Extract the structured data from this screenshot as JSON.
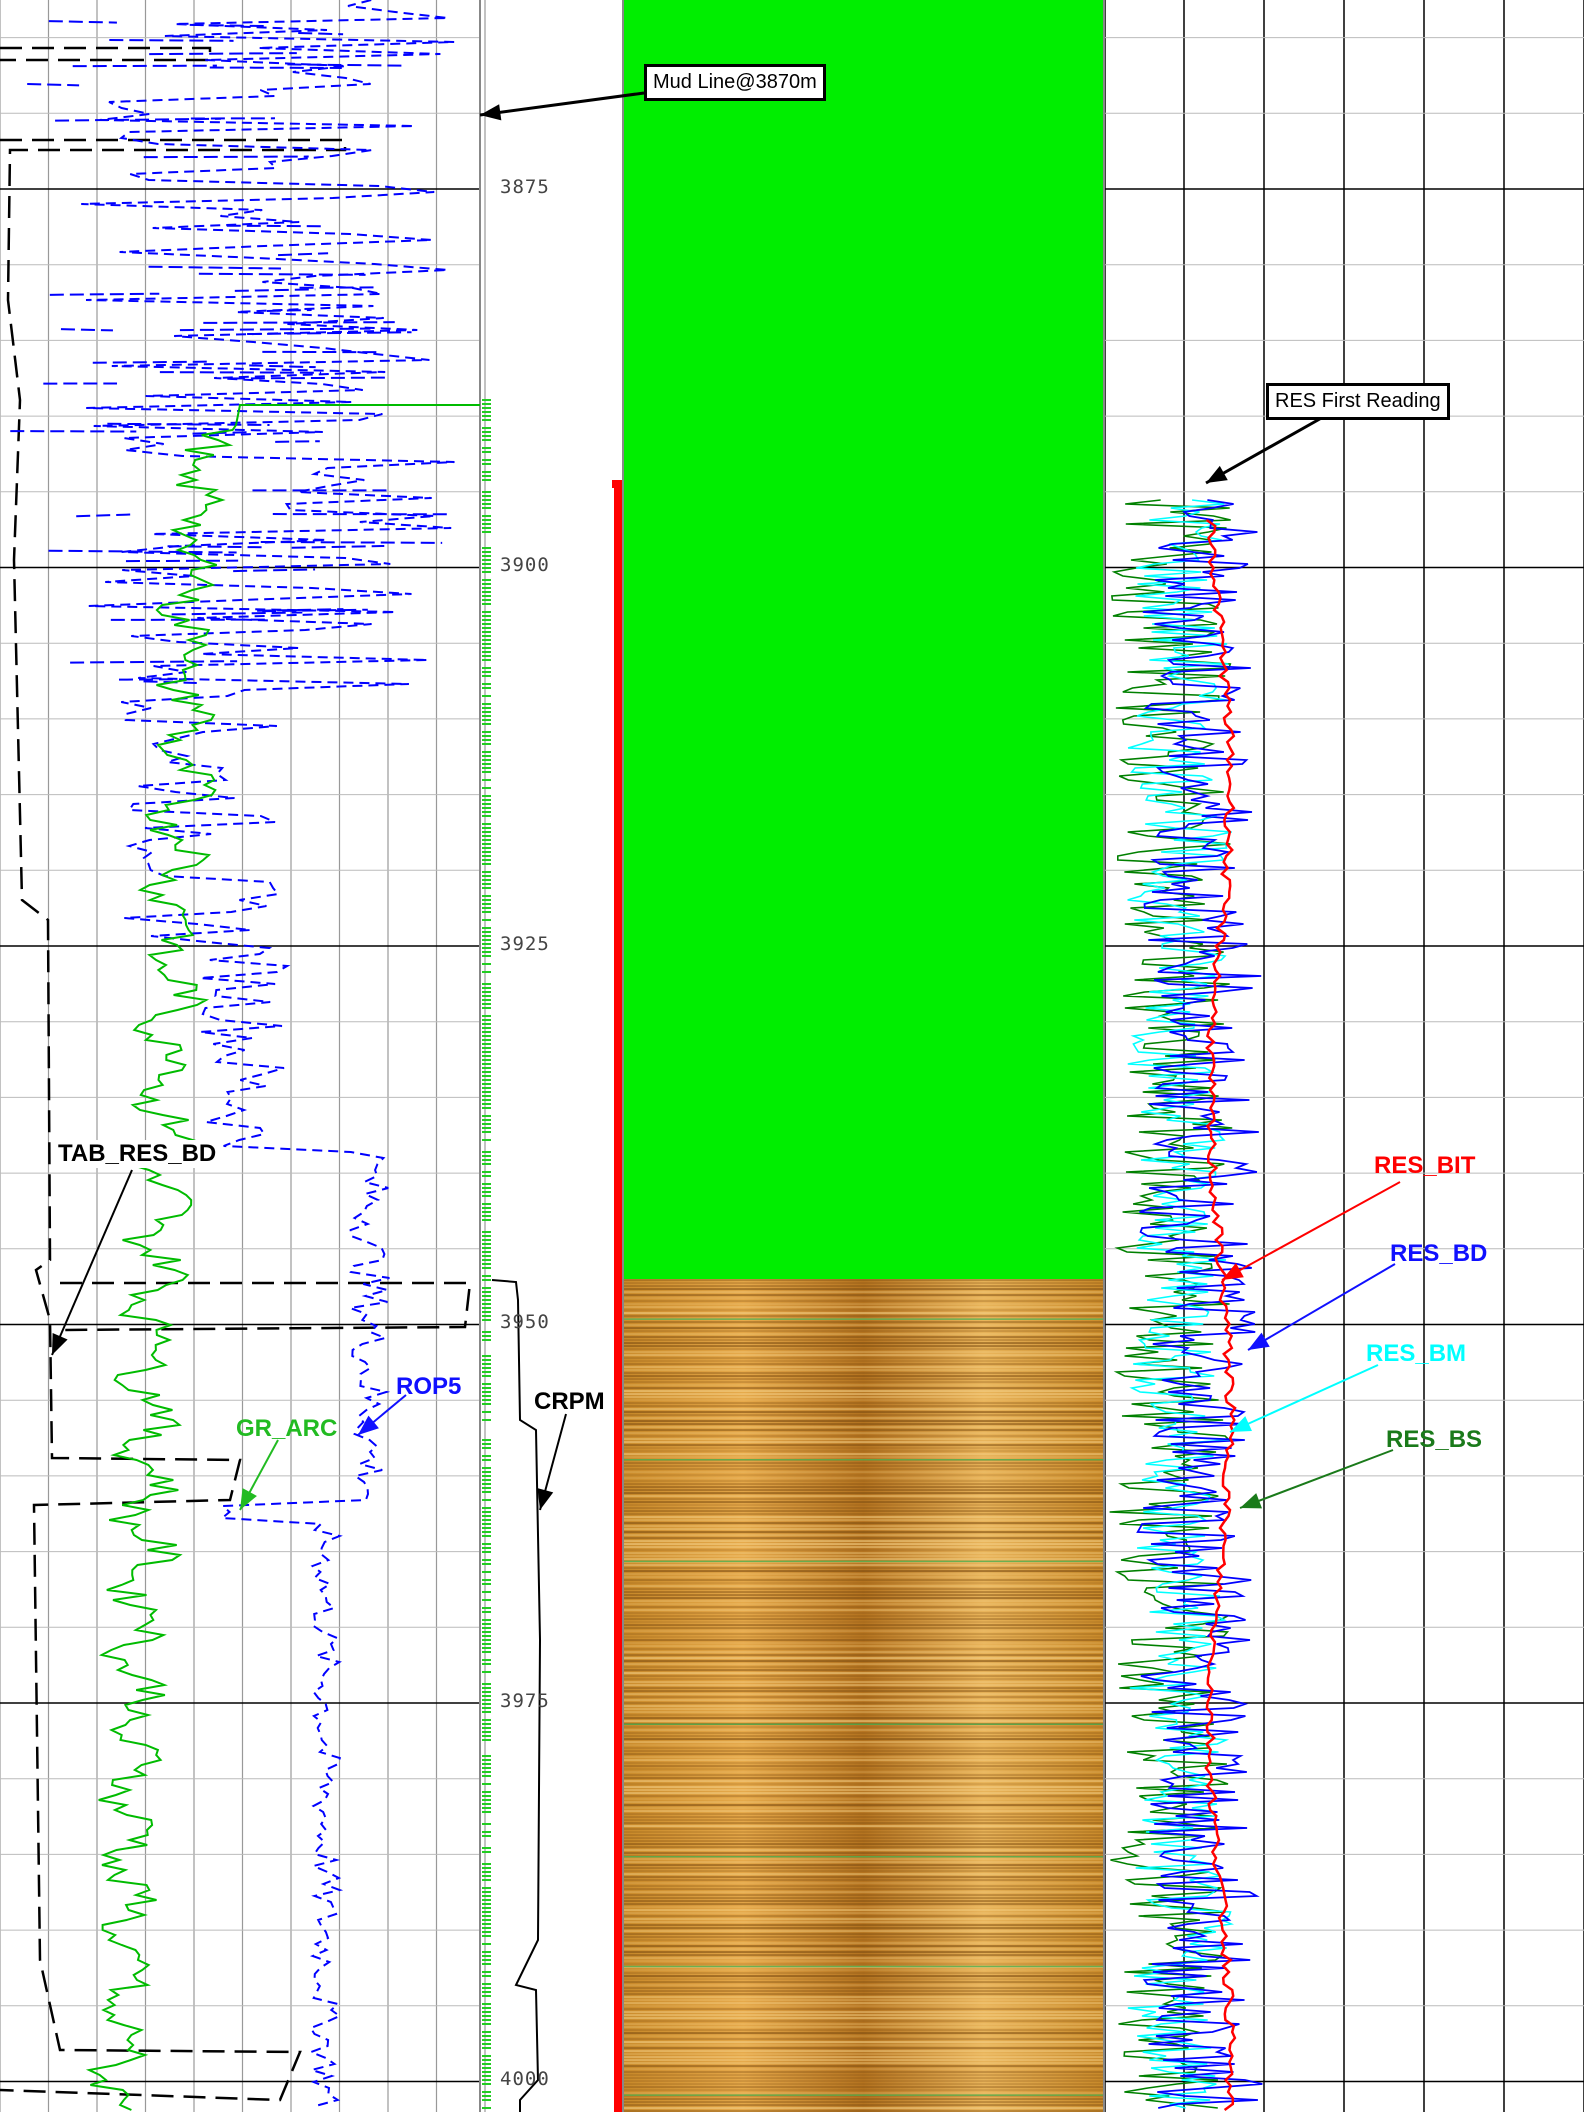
{
  "chart_data": {
    "type": "line",
    "title": "",
    "depth_unit": "m",
    "depth_range": [
      3850,
      4005
    ],
    "depth_ticks": [
      "3875",
      "3900",
      "3925",
      "3950",
      "3975",
      "4000"
    ],
    "tracks": [
      {
        "name": "left",
        "series": [
          {
            "name": "TAB_RES_BD",
            "color": "#000000",
            "style": "long-dash"
          },
          {
            "name": "ROP5",
            "color": "#0000ff",
            "style": "dash"
          },
          {
            "name": "GR_ARC",
            "color": "#00bb00",
            "style": "solid"
          }
        ]
      },
      {
        "name": "depth",
        "series": [
          {
            "name": "CRPM",
            "color": "#000000",
            "style": "solid"
          }
        ]
      },
      {
        "name": "image",
        "segments": [
          {
            "from": 3850,
            "to": 3947,
            "fill": "#00ee00"
          },
          {
            "from": 3947,
            "to": 4005,
            "fill": "borehole-image"
          }
        ]
      },
      {
        "name": "right",
        "series": [
          {
            "name": "RES_BIT",
            "color": "#ff0000"
          },
          {
            "name": "RES_BD",
            "color": "#0000ff"
          },
          {
            "name": "RES_BM",
            "color": "#00ffff"
          },
          {
            "name": "RES_BS",
            "color": "#008000"
          }
        ]
      }
    ],
    "annotations": {
      "mud_line": "Mud Line@3870m",
      "res_first_reading": "RES First Reading"
    }
  },
  "labels": {
    "tab_res_bd": "TAB_RES_BD",
    "rop5": "ROP5",
    "gr_arc": "GR_ARC",
    "crpm": "CRPM",
    "res_bit": "RES_BIT",
    "res_bd": "RES_BD",
    "res_bm": "RES_BM",
    "res_bs": "RES_BS"
  },
  "colors": {
    "gr": "#00bb00",
    "rop": "#0000ff",
    "tab": "#000000",
    "res_bit": "#ff0000",
    "res_bd": "#0000ff",
    "res_bm": "#00ffff",
    "res_bs": "#008000",
    "image_top": "#00ee00"
  }
}
